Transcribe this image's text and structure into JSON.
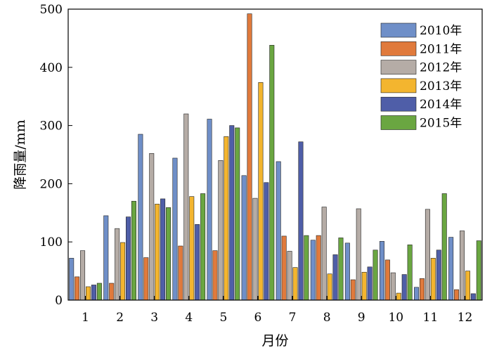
{
  "chart_data": {
    "type": "bar",
    "title": "",
    "xlabel": "月份",
    "ylabel": "降雨量/mm",
    "ylim": [
      0,
      500
    ],
    "yticks": [
      0,
      100,
      200,
      300,
      400,
      500
    ],
    "categories": [
      "1",
      "2",
      "3",
      "4",
      "5",
      "6",
      "7",
      "8",
      "9",
      "10",
      "11",
      "12"
    ],
    "legend_position": "top-right",
    "grid": false,
    "series": [
      {
        "name": "2010年",
        "color": "#6f8fc8",
        "values": [
          72,
          145,
          285,
          244,
          311,
          214,
          238,
          103,
          98,
          101,
          22,
          108
        ]
      },
      {
        "name": "2011年",
        "color": "#e07a3c",
        "values": [
          40,
          29,
          73,
          93,
          85,
          492,
          110,
          111,
          35,
          69,
          37,
          18
        ]
      },
      {
        "name": "2012年",
        "color": "#b5aca6",
        "values": [
          85,
          123,
          252,
          320,
          240,
          175,
          84,
          160,
          157,
          47,
          156,
          119
        ]
      },
      {
        "name": "2013年",
        "color": "#f3b52f",
        "values": [
          23,
          99,
          165,
          178,
          281,
          374,
          56,
          45,
          48,
          12,
          72,
          50
        ]
      },
      {
        "name": "2014年",
        "color": "#4f5ea8",
        "values": [
          26,
          143,
          174,
          130,
          300,
          202,
          272,
          78,
          57,
          44,
          86,
          11
        ]
      },
      {
        "name": "2015年",
        "color": "#6aa641",
        "values": [
          29,
          170,
          159,
          183,
          296,
          438,
          111,
          107,
          86,
          95,
          183,
          102
        ]
      }
    ]
  }
}
